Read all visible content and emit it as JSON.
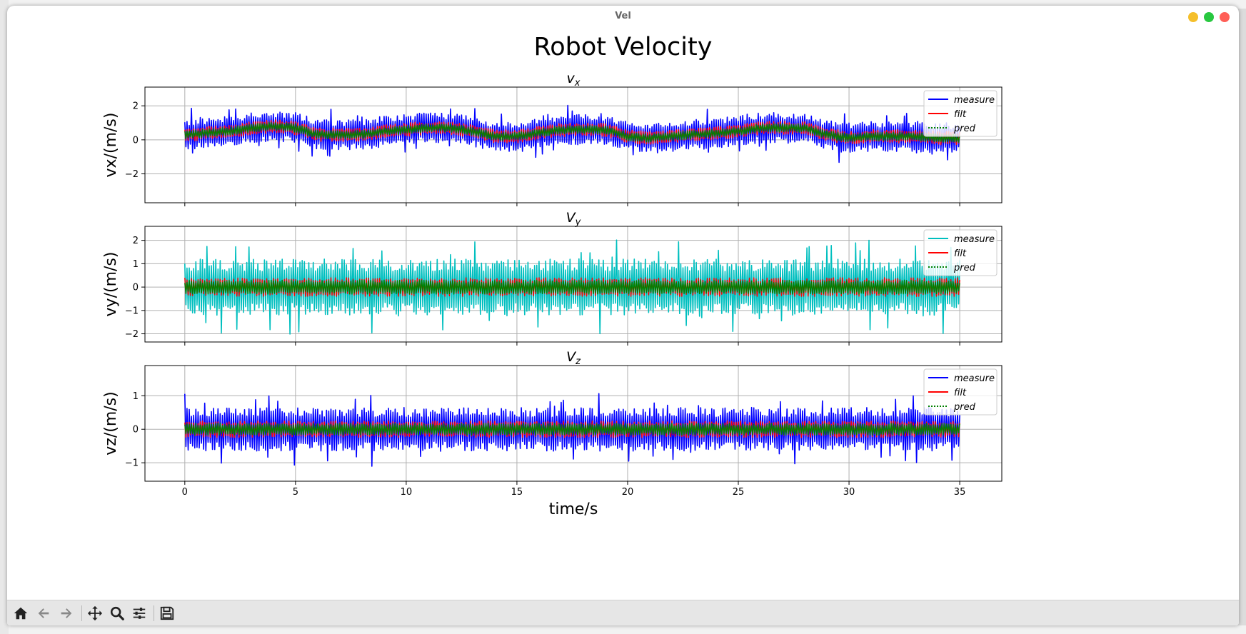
{
  "window": {
    "title": "Vel"
  },
  "figure": {
    "title": "Robot Velocity",
    "xlabel": "time/s"
  },
  "colors": {
    "measure_x": "#0000ff",
    "measure_y": "#00bfbf",
    "measure_z": "#0000ff",
    "filt": "#ff0000",
    "pred": "#008000",
    "grid": "#b0b0b0"
  },
  "toolbar": {
    "icons": [
      "home-icon",
      "back-icon",
      "forward-icon",
      "pan-icon",
      "zoom-icon",
      "configure-icon",
      "save-icon"
    ]
  },
  "chart_data": [
    {
      "type": "line",
      "title": "v_x",
      "title_main": "v",
      "title_sub": "x",
      "ylabel": "vx/(m/s)",
      "xlim": [
        -1.8,
        36.9
      ],
      "ylim": [
        -3.7,
        3.1
      ],
      "xticks": [
        "0",
        "5",
        "10",
        "15",
        "20",
        "25",
        "30",
        "35"
      ],
      "yticks": [
        {
          "v": 2,
          "label": "2"
        },
        {
          "v": 0,
          "label": "0"
        },
        {
          "v": -2,
          "label": "−2"
        }
      ],
      "legend": [
        "measure",
        "filt",
        "pred"
      ],
      "legend_position": "top-right",
      "grid": true,
      "series": [
        {
          "name": "measure",
          "x": [
            0,
            1,
            2,
            3,
            4,
            5,
            6,
            7,
            8,
            9,
            10,
            11,
            12,
            13,
            14,
            15,
            16,
            17,
            18,
            19,
            20,
            21,
            22,
            23,
            24,
            25,
            26,
            27,
            28,
            29,
            30,
            31,
            32,
            33,
            34,
            35
          ],
          "y": [
            0.3,
            0.4,
            0.5,
            0.7,
            0.8,
            0.7,
            0.3,
            0.3,
            0.3,
            0.5,
            0.6,
            0.7,
            0.7,
            0.5,
            0.2,
            0.2,
            0.4,
            0.6,
            0.6,
            0.6,
            0.2,
            0.1,
            0.2,
            0.3,
            0.4,
            0.5,
            0.7,
            0.7,
            0.7,
            0.3,
            0.1,
            0.2,
            0.2,
            0.2,
            0.1,
            0.1
          ],
          "spread": 0.9
        },
        {
          "name": "filt",
          "x": [
            0,
            1,
            2,
            3,
            4,
            5,
            6,
            7,
            8,
            9,
            10,
            11,
            12,
            13,
            14,
            15,
            16,
            17,
            18,
            19,
            20,
            21,
            22,
            23,
            24,
            25,
            26,
            27,
            28,
            29,
            30,
            31,
            32,
            33,
            34,
            35
          ],
          "y": [
            0.3,
            0.4,
            0.5,
            0.7,
            0.8,
            0.7,
            0.3,
            0.3,
            0.3,
            0.5,
            0.6,
            0.7,
            0.7,
            0.5,
            0.2,
            0.2,
            0.4,
            0.6,
            0.6,
            0.6,
            0.2,
            0.1,
            0.2,
            0.3,
            0.4,
            0.5,
            0.7,
            0.7,
            0.7,
            0.3,
            0.1,
            0.2,
            0.2,
            0.2,
            0.1,
            0.1
          ],
          "spread": 0.4
        },
        {
          "name": "pred",
          "x": [
            0,
            1,
            2,
            3,
            4,
            5,
            6,
            7,
            8,
            9,
            10,
            11,
            12,
            13,
            14,
            15,
            16,
            17,
            18,
            19,
            20,
            21,
            22,
            23,
            24,
            25,
            26,
            27,
            28,
            29,
            30,
            31,
            32,
            33,
            34,
            35
          ],
          "y": [
            0.3,
            0.4,
            0.5,
            0.7,
            0.8,
            0.7,
            0.3,
            0.3,
            0.3,
            0.5,
            0.6,
            0.7,
            0.7,
            0.5,
            0.2,
            0.2,
            0.4,
            0.6,
            0.6,
            0.6,
            0.2,
            0.1,
            0.2,
            0.3,
            0.4,
            0.5,
            0.7,
            0.7,
            0.7,
            0.3,
            0.1,
            0.2,
            0.2,
            0.2,
            0.1,
            0.1
          ],
          "spread": 0.25
        }
      ]
    },
    {
      "type": "line",
      "title": "V_y",
      "title_main": "V",
      "title_sub": "y",
      "ylabel": "vy/(m/s)",
      "xlim": [
        -1.8,
        36.9
      ],
      "ylim": [
        -2.35,
        2.6
      ],
      "xticks": [
        "0",
        "5",
        "10",
        "15",
        "20",
        "25",
        "30",
        "35"
      ],
      "yticks": [
        {
          "v": 2,
          "label": "2"
        },
        {
          "v": 1,
          "label": "1"
        },
        {
          "v": 0,
          "label": "0"
        },
        {
          "v": -1,
          "label": "−1"
        },
        {
          "v": -2,
          "label": "−2"
        }
      ],
      "legend": [
        "measure",
        "filt",
        "pred"
      ],
      "legend_position": "top-right",
      "grid": true,
      "series": [
        {
          "name": "measure",
          "x": [
            0,
            5,
            10,
            15,
            20,
            25,
            30,
            35
          ],
          "y": [
            0,
            0,
            0,
            0,
            0,
            0,
            0,
            0
          ],
          "spread": 1.2
        },
        {
          "name": "filt",
          "x": [
            0,
            5,
            10,
            15,
            20,
            25,
            30,
            35
          ],
          "y": [
            0,
            0,
            0,
            0,
            0,
            0,
            0,
            0
          ],
          "spread": 0.4
        },
        {
          "name": "pred",
          "x": [
            0,
            5,
            10,
            15,
            20,
            25,
            30,
            35
          ],
          "y": [
            0,
            0,
            0,
            0,
            0,
            0,
            0,
            0
          ],
          "spread": 0.3
        }
      ]
    },
    {
      "type": "line",
      "title": "V_z",
      "title_main": "V",
      "title_sub": "z",
      "ylabel": "vz/(m/s)",
      "xlim": [
        -1.8,
        36.9
      ],
      "ylim": [
        -1.55,
        1.9
      ],
      "xticks": [
        "0",
        "5",
        "10",
        "15",
        "20",
        "25",
        "30",
        "35"
      ],
      "yticks": [
        {
          "v": 1,
          "label": "1"
        },
        {
          "v": 0,
          "label": "0"
        },
        {
          "v": -1,
          "label": "−1"
        }
      ],
      "legend": [
        "measure",
        "filt",
        "pred"
      ],
      "legend_position": "top-right",
      "grid": true,
      "series": [
        {
          "name": "measure",
          "x": [
            0,
            5,
            10,
            15,
            20,
            25,
            30,
            35
          ],
          "y": [
            0,
            0,
            0,
            0,
            0,
            0,
            0,
            0
          ],
          "spread": 0.65
        },
        {
          "name": "filt",
          "x": [
            0,
            5,
            10,
            15,
            20,
            25,
            30,
            35
          ],
          "y": [
            0,
            0,
            0,
            0,
            0,
            0,
            0,
            0
          ],
          "spread": 0.25
        },
        {
          "name": "pred",
          "x": [
            0,
            5,
            10,
            15,
            20,
            25,
            30,
            35
          ],
          "y": [
            0,
            0,
            0,
            0,
            0,
            0,
            0,
            0
          ],
          "spread": 0.18
        }
      ]
    }
  ]
}
